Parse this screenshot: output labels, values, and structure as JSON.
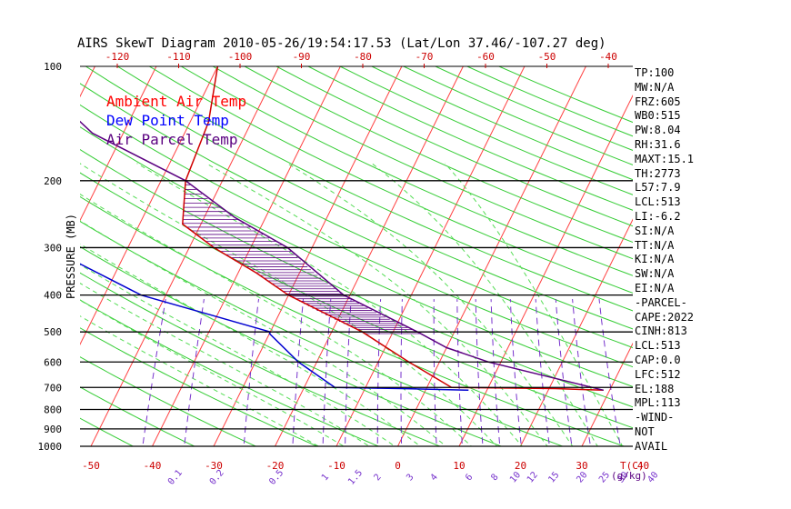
{
  "chart_data": {
    "type": "line",
    "title": "AIRS SkewT Diagram 2010-05-26/19:54:17.53 (Lat/Lon 37.46/-107.27 deg)",
    "ylabel": "PRESSURE (MB)",
    "x_unit_label": "T(C)",
    "mixing_ratio_unit_label": "(g/kg)",
    "pressure_ticks": [
      "100",
      "200",
      "300",
      "400",
      "500",
      "600",
      "700",
      "800",
      "900",
      "1000"
    ],
    "temp_ticks_top": [
      "-120",
      "-110",
      "-100",
      "-90",
      "-80",
      "-70",
      "-60",
      "-50",
      "-40"
    ],
    "temp_ticks_bottom": [
      "-50",
      "-40",
      "-30",
      "-20",
      "-10",
      "0",
      "10",
      "20",
      "30",
      "40"
    ],
    "mixing_ratio_labels": [
      "0.1",
      "0.2",
      "0.5",
      "1",
      "1.5",
      "2",
      "3",
      "4",
      "6",
      "8",
      "10",
      "12",
      "15",
      "20",
      "25",
      "30",
      "40"
    ],
    "legend": [
      {
        "label": "Ambient Air Temp",
        "color": "#ff0000"
      },
      {
        "label": "Dew Point Temp",
        "color": "#0000ff"
      },
      {
        "label": "Air Parcel Temp",
        "color": "#5a0080"
      }
    ],
    "series": [
      {
        "name": "Ambient Air Temp",
        "color": "#d00000",
        "points": [
          [
            100,
            -60
          ],
          [
            140,
            -57
          ],
          [
            200,
            -56
          ],
          [
            260,
            -53
          ],
          [
            300,
            -46
          ],
          [
            350,
            -37
          ],
          [
            400,
            -30
          ],
          [
            500,
            -15
          ],
          [
            600,
            -5
          ],
          [
            700,
            4
          ],
          [
            705,
            21
          ],
          [
            712,
            29
          ]
        ]
      },
      {
        "name": "Dew Point Temp",
        "color": "#0000d0",
        "points": [
          [
            100,
            -87
          ],
          [
            140,
            -92
          ],
          [
            175,
            -94
          ],
          [
            200,
            -89
          ],
          [
            260,
            -80
          ],
          [
            300,
            -73
          ],
          [
            400,
            -54
          ],
          [
            500,
            -30
          ],
          [
            505,
            -30
          ],
          [
            600,
            -23
          ],
          [
            700,
            -15
          ],
          [
            705,
            -4
          ],
          [
            712,
            7
          ]
        ]
      },
      {
        "name": "Air Parcel Temp",
        "color": "#5a0080",
        "points": [
          [
            100,
            -92
          ],
          [
            150,
            -75
          ],
          [
            200,
            -56
          ],
          [
            250,
            -45
          ],
          [
            300,
            -34
          ],
          [
            400,
            -21
          ],
          [
            500,
            -6
          ],
          [
            550,
            0
          ],
          [
            600,
            8
          ],
          [
            712,
            29
          ]
        ]
      }
    ]
  },
  "stats": [
    "TP:100",
    "MW:N/A",
    "FRZ:605",
    "WB0:515",
    "PW:8.04",
    "RH:31.6",
    "MAXT:15.1",
    "TH:2773",
    "L57:7.9",
    "LCL:513",
    "LI:-6.2",
    "SI:N/A",
    "TT:N/A",
    "KI:N/A",
    "SW:N/A",
    "EI:N/A",
    "-PARCEL-",
    "CAPE:2022",
    "CINH:813",
    "LCL:513",
    "CAP:0.0",
    "LFC:512",
    "EL:188",
    "MPL:113",
    "-WIND-",
    "NOT",
    "AVAIL"
  ],
  "colors": {
    "isotherm": "#ff4040",
    "dry_adiabat": "#33cc33",
    "moist_adiabat": "#55dd55",
    "mixing_ratio": "#7733cc",
    "tick_text": "#cc0000",
    "isobar": "#000000"
  }
}
